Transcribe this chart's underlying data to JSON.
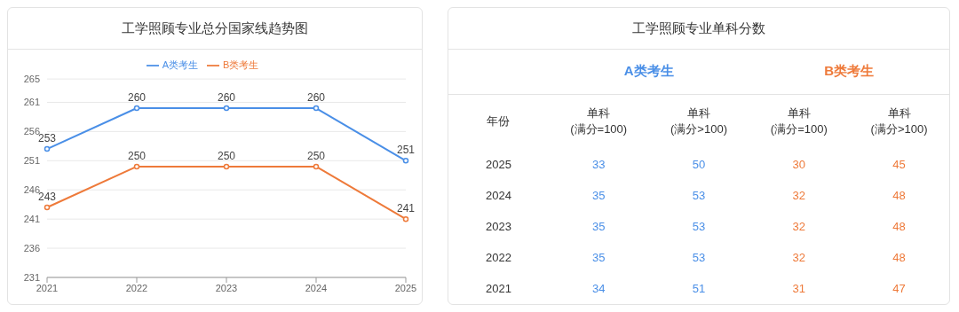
{
  "chart_data": [
    {
      "type": "line",
      "title": "工学照顾专业总分国家线趋势图",
      "categories": [
        "2021",
        "2022",
        "2023",
        "2024",
        "2025"
      ],
      "series": [
        {
          "name": "A类考生",
          "color": "#4a8fe7",
          "values": [
            253,
            260,
            260,
            260,
            251
          ]
        },
        {
          "name": "B类考生",
          "color": "#ee7a3a",
          "values": [
            243,
            250,
            250,
            250,
            241
          ]
        }
      ],
      "ylim": [
        231,
        265
      ],
      "yticks": [
        231,
        236,
        241,
        246,
        251,
        256,
        261,
        265
      ],
      "grid": "y",
      "legend": "top",
      "marker": "circle",
      "line_style": "solid",
      "data_labels": true
    },
    {
      "type": "heatmap",
      "title": "工学照顾专业单科分数",
      "ylabel": "年份",
      "annotations": [
        "A类考生",
        "B类考生"
      ],
      "categories": [
        "单科\n(满分=100)",
        "单科\n(满分>100)",
        "单科\n(满分=100)",
        "单科\n(满分>100)"
      ],
      "y_categories": [
        "2025",
        "2024",
        "2023",
        "2022",
        "2021"
      ],
      "colors": [
        "#4a8fe7",
        "#4a8fe7",
        "#ee7a3a",
        "#ee7a3a"
      ],
      "cells": [
        [
          33,
          50,
          30,
          45
        ],
        [
          35,
          53,
          32,
          48
        ],
        [
          35,
          53,
          32,
          48
        ],
        [
          35,
          53,
          32,
          48
        ],
        [
          34,
          51,
          31,
          47
        ]
      ],
      "data_labels": true
    }
  ]
}
